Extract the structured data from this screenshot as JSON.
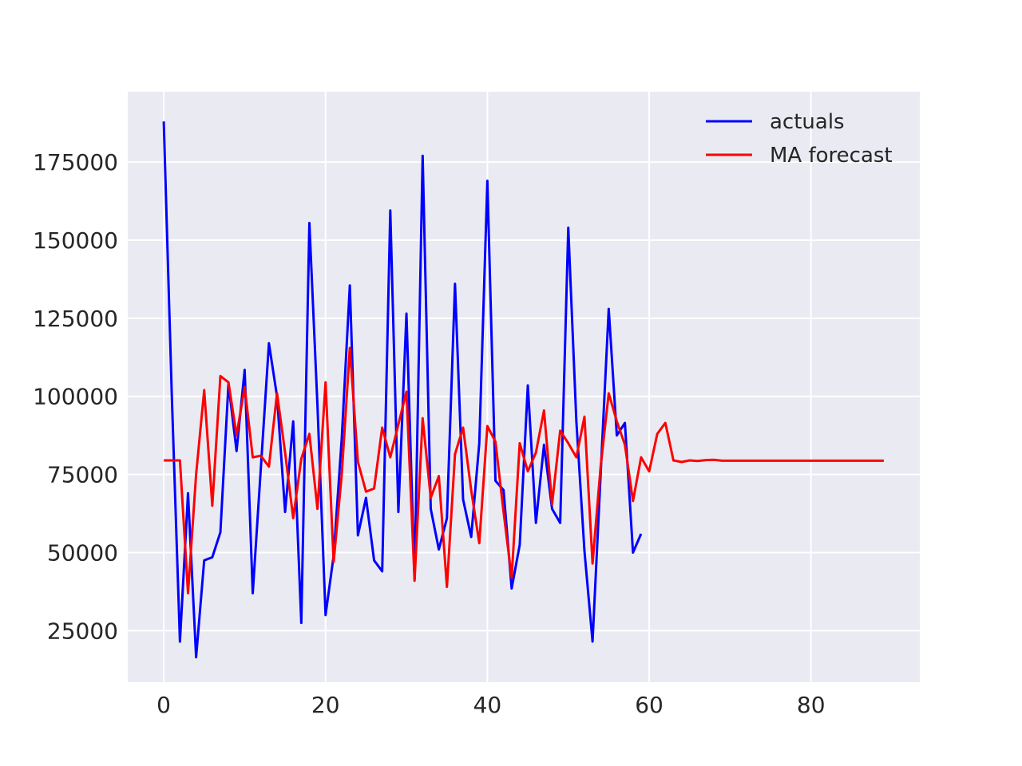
{
  "chart_data": {
    "type": "line",
    "title": "",
    "xlabel": "",
    "ylabel": "",
    "xlim": [
      -4.45,
      93.45
    ],
    "ylim": [
      8500,
      197500
    ],
    "xticks": [
      0,
      20,
      40,
      60,
      80
    ],
    "yticks": [
      25000,
      50000,
      75000,
      100000,
      125000,
      150000,
      175000
    ],
    "grid": true,
    "legend_position": "top-right",
    "background": "#eaeaf2",
    "series": [
      {
        "name": "actuals",
        "color": "#0000ff",
        "x_start": 0,
        "values": [
          188000,
          100000,
          21500,
          69000,
          16500,
          47500,
          48500,
          56500,
          104000,
          82500,
          108500,
          37000,
          77000,
          117000,
          100000,
          63000,
          92000,
          27500,
          155500,
          97000,
          30000,
          49000,
          86500,
          135500,
          55500,
          67500,
          47500,
          44000,
          159500,
          63000,
          126500,
          41500,
          177000,
          64000,
          51000,
          61000,
          136000,
          67000,
          55000,
          85000,
          169000,
          73000,
          70000,
          38500,
          52500,
          103500,
          59500,
          84500,
          64000,
          59500,
          154000,
          92000,
          50500,
          21500,
          75000,
          128000,
          87500,
          91500,
          50000,
          56000
        ]
      },
      {
        "name": "MA forecast",
        "color": "#ff0000",
        "x_start": 0,
        "values": [
          79500,
          79500,
          79500,
          37000,
          75000,
          102000,
          65000,
          106500,
          104500,
          87500,
          103000,
          80500,
          81000,
          77500,
          101000,
          82000,
          61000,
          80000,
          88000,
          64000,
          104500,
          47000,
          75000,
          115500,
          79000,
          69500,
          70500,
          90000,
          80500,
          91000,
          101500,
          41000,
          93000,
          67500,
          74500,
          39000,
          81500,
          90000,
          70000,
          53000,
          90500,
          85500,
          63000,
          42000,
          85000,
          76000,
          82000,
          95500,
          65500,
          89000,
          85000,
          80500,
          93500,
          46500,
          77500,
          101000,
          92000,
          84500,
          66500,
          80500,
          76000,
          88000,
          91500,
          79500,
          79000,
          79500,
          79300,
          79600,
          79700,
          79400,
          79400,
          79400,
          79400,
          79400,
          79400,
          79400,
          79400,
          79400,
          79400,
          79400,
          79400,
          79400,
          79400,
          79400,
          79400,
          79400,
          79400,
          79400,
          79400,
          79400
        ]
      }
    ]
  }
}
